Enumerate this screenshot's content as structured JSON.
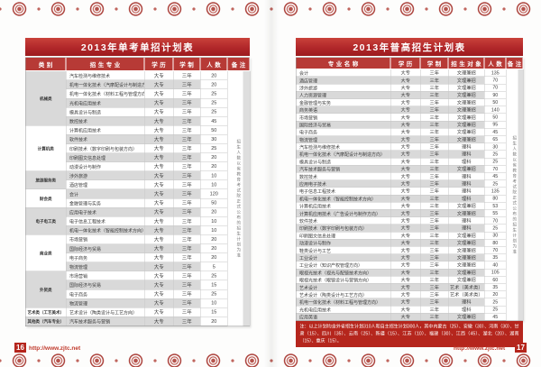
{
  "colors": {
    "accent_red": "#b5261d",
    "title_red_top": "#c9423a",
    "title_red_bottom": "#9c1b1e",
    "header_red": "#b73a36",
    "row_gray": "#d9d9d9",
    "ornament_red": "#b5534c"
  },
  "page_left": {
    "page_number": "16",
    "footer_url": "http://www.zjtc.net",
    "table": {
      "title": "2013年单考单招计划表",
      "headers": [
        "类别",
        "招生专业",
        "学历",
        "学制",
        "人数",
        "备注"
      ],
      "remark_note": "招生人数以省教育考试院正式公布的招生计划为准",
      "groups": [
        {
          "category": "机械类",
          "rows": [
            [
              "汽车检测与维修技术",
              "大专",
              "三年",
              "20"
            ],
            [
              "机电一体化技术（汽摩配设计与制造方向）",
              "大专",
              "三年",
              "20"
            ],
            [
              "机电一体化技术（材料工程与管理方向）",
              "大专",
              "三年",
              "25"
            ],
            [
              "光机电应用技术",
              "大专",
              "三年",
              "25"
            ],
            [
              "模具设计与制造",
              "大专",
              "三年",
              "25"
            ],
            [
              "数控技术",
              "大专",
              "三年",
              "45"
            ]
          ]
        },
        {
          "category": "计算机类",
          "rows": [
            [
              "计算机应用技术",
              "大专",
              "三年",
              "50"
            ],
            [
              "软件技术",
              "大专",
              "三年",
              "30"
            ],
            [
              "印刷技术（数字印刷与包装方向）",
              "大专",
              "三年",
              "25"
            ],
            [
              "印刷图文信息处理",
              "大专",
              "三年",
              "20"
            ],
            [
              "动漫设计与制作",
              "大专",
              "三年",
              "20"
            ]
          ]
        },
        {
          "category": "旅游服务类",
          "rows": [
            [
              "涉外旅游",
              "大专",
              "三年",
              "10"
            ],
            [
              "酒店管理",
              "大专",
              "三年",
              "10"
            ]
          ]
        },
        {
          "category": "财会类",
          "rows": [
            [
              "会计",
              "大专",
              "三年",
              "120"
            ],
            [
              "金融管理与实务",
              "大专",
              "三年",
              "50"
            ]
          ]
        },
        {
          "category": "电子电工类",
          "rows": [
            [
              "应用电子技术",
              "大专",
              "三年",
              "20"
            ],
            [
              "电子信息工程技术",
              "大专",
              "三年",
              "10"
            ],
            [
              "机电一体化技术（智能控制技术方向）",
              "大专",
              "三年",
              "10"
            ]
          ]
        },
        {
          "category": "商业类",
          "rows": [
            [
              "市场营销",
              "大专",
              "三年",
              "20"
            ],
            [
              "国际经济与贸易",
              "大专",
              "三年",
              "20"
            ],
            [
              "电子商务",
              "大专",
              "三年",
              "20"
            ],
            [
              "物流管理",
              "大专",
              "三年",
              "5"
            ]
          ]
        },
        {
          "category": "外贸类",
          "rows": [
            [
              "市场营销",
              "大专",
              "三年",
              "25"
            ],
            [
              "国际经济与贸易",
              "大专",
              "三年",
              "15"
            ],
            [
              "电子商务",
              "大专",
              "三年",
              "25"
            ],
            [
              "物流管理",
              "大专",
              "三年",
              "10"
            ]
          ]
        },
        {
          "category": "艺术类（工艺美术）",
          "rows": [
            [
              "艺术设计（陶类设计与工艺方向）",
              "大专",
              "三年",
              "15"
            ]
          ]
        },
        {
          "category": "其他类（汽车专业）",
          "rows": [
            [
              "汽车技术服务与营销",
              "大专",
              "三年",
              "20"
            ]
          ]
        }
      ]
    }
  },
  "page_right": {
    "page_number": "17",
    "footer_url": "http://www.zjtc.net",
    "note": "注：以上计划均含外省招生计划310人和自主招生计划300人，其中内蒙古（25）、安徽（30）、河南（30）、甘肃（15）、四川（35）、云南（25）、新疆（15）、江苏（10）、福建（30）、江西（45）、湖北（20）、湖南（15）、重庆（15）。",
    "table": {
      "title": "2013年普高招生计划表",
      "headers": [
        "专业名称",
        "学历",
        "学制",
        "招生对象",
        "人数",
        "备注"
      ],
      "remark_note": "招生人数以省教育考试院正式公布的招生计划为准",
      "rows": [
        [
          "会计",
          "大专",
          "三年",
          "文理兼招",
          "135"
        ],
        [
          "酒店管理",
          "大专",
          "三年",
          "文理兼招",
          "70"
        ],
        [
          "涉外旅游",
          "大专",
          "三年",
          "文理兼招",
          "70"
        ],
        [
          "人力资源管理",
          "大专",
          "三年",
          "文理兼招",
          "90"
        ],
        [
          "金融管理与实务",
          "大专",
          "三年",
          "文理兼招",
          "50"
        ],
        [
          "商务英语",
          "大专",
          "三年",
          "文理兼招",
          "140"
        ],
        [
          "市场营销",
          "大专",
          "三年",
          "文理兼招",
          "50"
        ],
        [
          "国际经济与贸易",
          "大专",
          "三年",
          "文理兼招",
          "95"
        ],
        [
          "电子商务",
          "大专",
          "三年",
          "文理兼招",
          "45"
        ],
        [
          "物流管理",
          "大专",
          "三年",
          "文理兼招",
          "65"
        ],
        [
          "汽车检测与维修技术",
          "大专",
          "三年",
          "理科",
          "30"
        ],
        [
          "机电一体化技术（汽摩配设计与制造方向）",
          "大专",
          "三年",
          "理科",
          "25"
        ],
        [
          "模具设计与制造",
          "大专",
          "三年",
          "理科",
          "25"
        ],
        [
          "汽车技术服务与营销",
          "大专",
          "三年",
          "文理兼招",
          "70"
        ],
        [
          "数控技术",
          "大专",
          "三年",
          "理科",
          "45"
        ],
        [
          "应用电子技术",
          "大专",
          "三年",
          "理科",
          "25"
        ],
        [
          "电子信息工程技术",
          "大专",
          "三年",
          "理科",
          "135"
        ],
        [
          "机电一体化技术（智能控制技术方向）",
          "大专",
          "三年",
          "理科",
          "80"
        ],
        [
          "计算机应用技术",
          "大专",
          "三年",
          "文理兼招",
          "53"
        ],
        [
          "计算机应用技术（广告设计与制作方向）",
          "大专",
          "三年",
          "文理兼招",
          "55"
        ],
        [
          "软件技术",
          "大专",
          "三年",
          "理科",
          "70"
        ],
        [
          "印刷技术（数字印刷与包装方向）",
          "大专",
          "三年",
          "理科",
          "25"
        ],
        [
          "印刷图文信息处理",
          "大专",
          "三年",
          "文理兼招",
          "30"
        ],
        [
          "动漫设计与制作",
          "大专",
          "三年",
          "文理兼招",
          "80"
        ],
        [
          "鞋类设计与工艺",
          "大专",
          "三年",
          "文理兼招",
          "70"
        ],
        [
          "工业设计",
          "大专",
          "三年",
          "文理兼招",
          "35"
        ],
        [
          "工业设计（知识产权管理方向）",
          "大专",
          "三年",
          "文理兼招",
          "40"
        ],
        [
          "眼视光技术（视光与配镜技术方向）",
          "大专",
          "三年",
          "文理兼招",
          "105"
        ],
        [
          "眼视光技术（眼镜设计与营销方向）",
          "大专",
          "三年",
          "文理兼招",
          "60"
        ],
        [
          "艺术设计",
          "大专",
          "三年",
          "艺术（美术类）",
          "35"
        ],
        [
          "艺术设计（陶类设计与工艺方向）",
          "大专",
          "三年",
          "艺术（美术类）",
          "20"
        ],
        [
          "机电一体化技术（材料工程与管理方向）",
          "大专",
          "三年",
          "理科",
          "25"
        ],
        [
          "光机电应用技术",
          "大专",
          "三年",
          "理科",
          "25"
        ],
        [
          "应用英语",
          "大专",
          "三年",
          "文理兼招",
          "45"
        ]
      ]
    }
  }
}
